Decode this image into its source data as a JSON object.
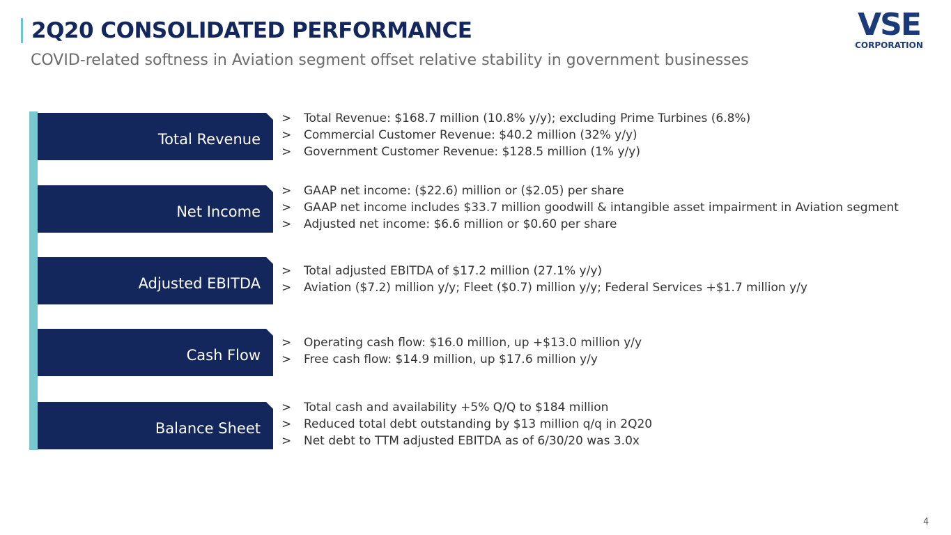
{
  "header": {
    "title": "2Q20 CONSOLIDATED PERFORMANCE",
    "subtitle": "COVID-related softness in Aviation segment offset relative stability in government businesses",
    "logo": "VSE",
    "logo_sub": "CORPORATION"
  },
  "sections": [
    {
      "label": "Total Revenue",
      "bullets": [
        "Total Revenue:  $168.7 million (10.8% y/y); excluding Prime Turbines (6.8%)",
        "Commercial Customer Revenue:  $40.2 million (32% y/y)",
        "Government Customer Revenue: $128.5 million (1% y/y)"
      ]
    },
    {
      "label": "Net Income",
      "bullets": [
        "GAAP net income: ($22.6) million or ($2.05) per share",
        "GAAP net income includes $33.7 million goodwill & intangible asset impairment in Aviation segment",
        "Adjusted net income: $6.6 million or $0.60 per share"
      ]
    },
    {
      "label": "Adjusted EBITDA",
      "bullets": [
        "Total adjusted EBITDA of $17.2 million (27.1% y/y)",
        "Aviation ($7.2) million y/y; Fleet ($0.7) million y/y; Federal Services +$1.7 million y/y"
      ]
    },
    {
      "label": "Cash Flow",
      "bullets": [
        "Operating cash flow: $16.0 million, up +$13.0 million y/y",
        "Free cash flow: $14.9 million, up $17.6 million y/y"
      ]
    },
    {
      "label": "Balance Sheet",
      "bullets": [
        "Total cash and availability +5% Q/Q to $184 million",
        "Reduced total debt outstanding by $13 million q/q in 2Q20",
        "Net debt to TTM adjusted EBITDA as of 6/30/20 was 3.0x"
      ]
    }
  ],
  "bullet_marker": ">",
  "page_number": "4"
}
